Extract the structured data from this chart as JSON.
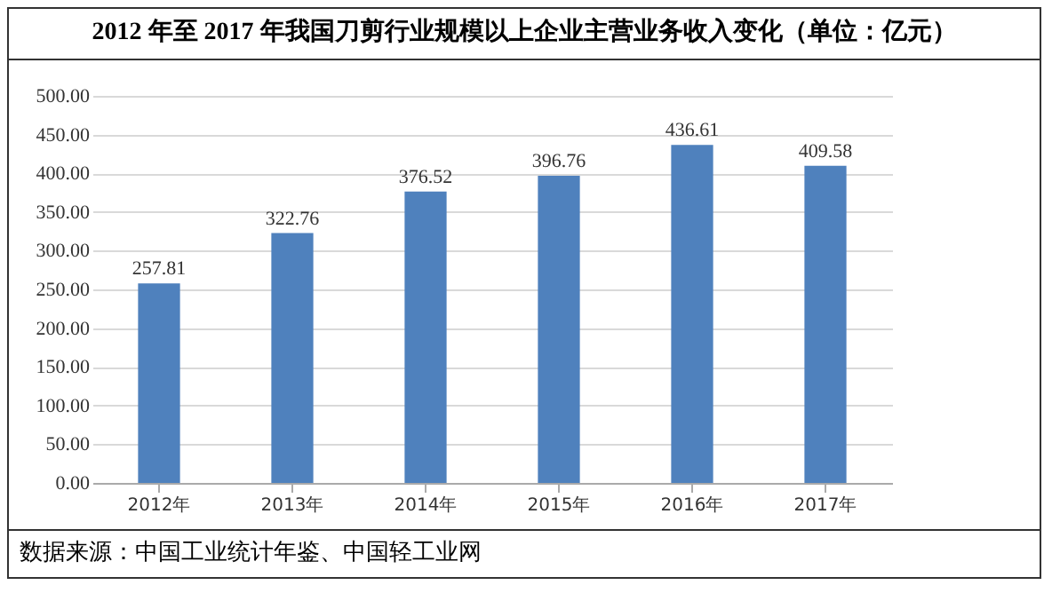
{
  "chart_data": {
    "type": "bar",
    "title": "2012 年至 2017 年我国刀剪行业规模以上企业主营业务收入变化（单位：亿元）",
    "categories": [
      "2012年",
      "2013年",
      "2014年",
      "2015年",
      "2016年",
      "2017年"
    ],
    "values": [
      257.81,
      322.76,
      376.52,
      396.76,
      436.61,
      409.58
    ],
    "color": "#4f81bd",
    "ylim": [
      0,
      500
    ],
    "yticks": [
      {
        "value": 0,
        "label": "0.00"
      },
      {
        "value": 50,
        "label": "50.00"
      },
      {
        "value": 100,
        "label": "100.00"
      },
      {
        "value": 150,
        "label": "150.00"
      },
      {
        "value": 200,
        "label": "200.00"
      },
      {
        "value": 250,
        "label": "250.00"
      },
      {
        "value": 300,
        "label": "300.00"
      },
      {
        "value": 350,
        "label": "350.00"
      },
      {
        "value": 400,
        "label": "400.00"
      },
      {
        "value": 450,
        "label": "450.00"
      },
      {
        "value": 500,
        "label": "500.00"
      }
    ],
    "grid": true,
    "data_labels": true,
    "annotations": [
      "数据来源：中国工业统计年鉴、中国轻工业网"
    ]
  }
}
